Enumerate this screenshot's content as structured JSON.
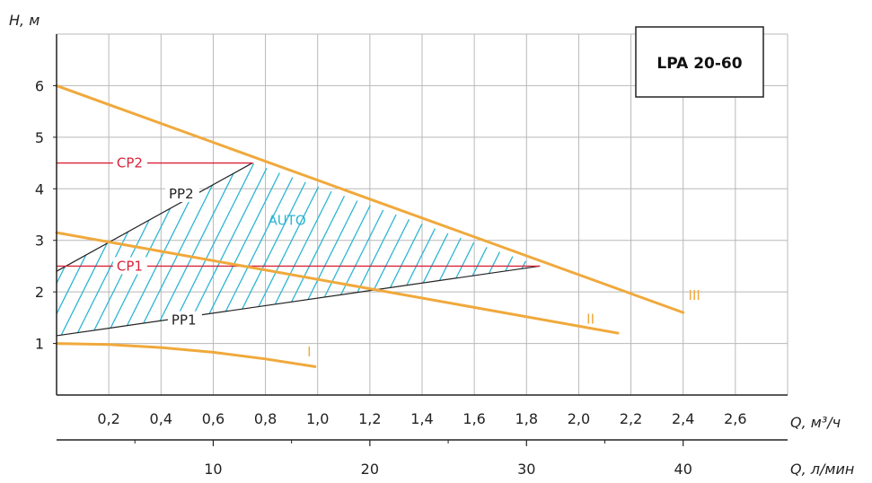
{
  "chart_data": {
    "type": "line",
    "title": "LPA 20-60",
    "ylabel": "H, м",
    "xlabel": "Q, м³/ч",
    "xlabel_secondary": "Q, л/мин",
    "xlim": [
      0,
      2.8
    ],
    "ylim": [
      0,
      7
    ],
    "x_ticks": [
      "0,2",
      "0,4",
      "0,6",
      "0,8",
      "1,0",
      "1,2",
      "1,4",
      "1,6",
      "1,8",
      "2,0",
      "2,2",
      "2,4",
      "2,6"
    ],
    "y_ticks": [
      "1",
      "2",
      "3",
      "4",
      "5",
      "6"
    ],
    "x2_ticks": [
      "10",
      "20",
      "30",
      "40"
    ],
    "grid": true,
    "region": {
      "name": "AUTO",
      "polygon": [
        [
          0,
          1.15
        ],
        [
          0,
          2.4
        ],
        [
          0.75,
          4.5
        ],
        [
          1.85,
          2.5
        ]
      ]
    },
    "series": [
      {
        "name": "I",
        "x": [
          0,
          0.2,
          0.4,
          0.6,
          0.8,
          0.99
        ],
        "y": [
          1.0,
          0.98,
          0.92,
          0.83,
          0.7,
          0.55
        ]
      },
      {
        "name": "II",
        "x": [
          0,
          2.15
        ],
        "y": [
          3.15,
          1.2
        ]
      },
      {
        "name": "III",
        "x": [
          0,
          2.4
        ],
        "y": [
          6.0,
          1.6
        ]
      },
      {
        "name": "CP1",
        "x": [
          0,
          1.85
        ],
        "y": [
          2.5,
          2.5
        ]
      },
      {
        "name": "CP2",
        "x": [
          0,
          0.75
        ],
        "y": [
          4.5,
          4.5
        ]
      },
      {
        "name": "PP1",
        "x": [
          0,
          1.85
        ],
        "y": [
          1.15,
          2.5
        ]
      },
      {
        "name": "PP2",
        "x": [
          0,
          0.75
        ],
        "y": [
          2.4,
          4.5
        ]
      }
    ],
    "colors": {
      "orange": "#f0a93c",
      "red": "#d9233a",
      "cyan": "#2eb6d3",
      "black": "#222222",
      "grid": "#b8b8b8"
    }
  }
}
